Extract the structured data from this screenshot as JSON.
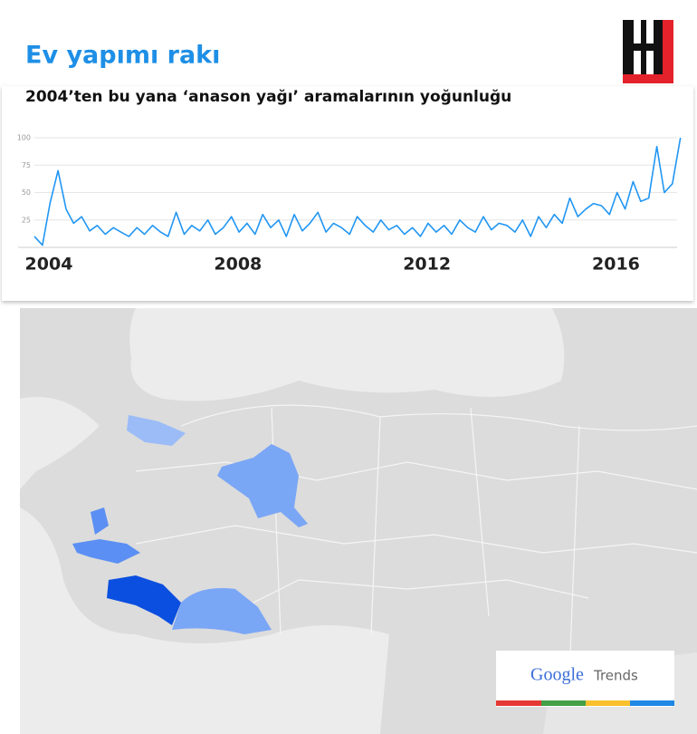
{
  "chart_data": {
    "type": "line",
    "title": "Ev yapımı rakı",
    "subtitle": "2004’ten bu yana ‘anason yağı’ aramalarının yoğunluğu",
    "x": [
      2004,
      2004.17,
      2004.33,
      2004.5,
      2004.67,
      2004.83,
      2005,
      2005.17,
      2005.33,
      2005.5,
      2005.67,
      2005.83,
      2006,
      2006.17,
      2006.33,
      2006.5,
      2006.67,
      2006.83,
      2007,
      2007.17,
      2007.33,
      2007.5,
      2007.67,
      2007.83,
      2008,
      2008.17,
      2008.33,
      2008.5,
      2008.67,
      2008.83,
      2009,
      2009.17,
      2009.33,
      2009.5,
      2009.67,
      2009.83,
      2010,
      2010.17,
      2010.33,
      2010.5,
      2010.67,
      2010.83,
      2011,
      2011.17,
      2011.33,
      2011.5,
      2011.67,
      2011.83,
      2012,
      2012.17,
      2012.33,
      2012.5,
      2012.67,
      2012.83,
      2013,
      2013.17,
      2013.33,
      2013.5,
      2013.67,
      2013.83,
      2014,
      2014.17,
      2014.33,
      2014.5,
      2014.67,
      2014.83,
      2015,
      2015.17,
      2015.33,
      2015.5,
      2015.67,
      2015.83,
      2016,
      2016.17,
      2016.33,
      2016.5,
      2016.67,
      2016.83,
      2017,
      2017.17,
      2017.33,
      2017.5,
      2017.67
    ],
    "values": [
      10,
      2,
      40,
      70,
      35,
      22,
      28,
      15,
      20,
      12,
      18,
      14,
      10,
      18,
      12,
      20,
      14,
      10,
      32,
      12,
      20,
      15,
      25,
      12,
      18,
      28,
      14,
      22,
      12,
      30,
      18,
      25,
      10,
      30,
      15,
      22,
      32,
      14,
      22,
      18,
      12,
      28,
      20,
      14,
      25,
      16,
      20,
      12,
      18,
      10,
      22,
      14,
      20,
      12,
      25,
      18,
      14,
      28,
      16,
      22,
      20,
      14,
      25,
      10,
      28,
      18,
      30,
      22,
      45,
      28,
      35,
      40,
      38,
      30,
      50,
      35,
      60,
      42,
      45,
      92,
      50,
      58,
      100
    ],
    "color": "#2196f3",
    "xlim": [
      2004,
      2017.6
    ],
    "xticks": [
      2004,
      2008,
      2012,
      2016
    ],
    "ylim": [
      0,
      100
    ],
    "yticks": [
      25,
      50,
      75,
      100
    ],
    "grid": true
  },
  "brand": {
    "google": "Google",
    "trends": "Trends"
  }
}
